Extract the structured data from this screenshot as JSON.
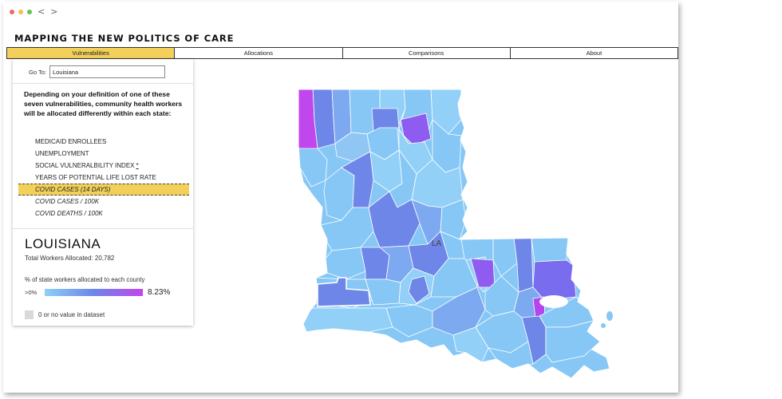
{
  "window": {
    "nav_back": "<",
    "nav_forward": ">"
  },
  "site_title": "MAPPING THE NEW POLITICS OF CARE",
  "tabs": [
    {
      "label": "Vulnerabilities",
      "active": true
    },
    {
      "label": "Allocations",
      "active": false
    },
    {
      "label": "Comparisons",
      "active": false
    },
    {
      "label": "About",
      "active": false
    }
  ],
  "goto": {
    "label": "Go To:",
    "value": "Louisiana"
  },
  "intro_text": "Depending on your definition of one of these seven vulnerabilities, community health workers will be allocated differently within each state:",
  "vulnerabilities": [
    {
      "label": "MEDICAID ENROLLEES",
      "selected": false,
      "italic": false
    },
    {
      "label": "UNEMPLOYMENT",
      "selected": false,
      "italic": false
    },
    {
      "label": "SOCIAL VULNERALBILITY INDEX",
      "selected": false,
      "italic": false,
      "info": "*"
    },
    {
      "label": "YEARS OF POTENTIAL LIFE LOST RATE",
      "selected": false,
      "italic": false
    },
    {
      "label": "COVID CASES (14 DAYS)",
      "selected": true,
      "italic": true
    },
    {
      "label": "COVID CASES / 100K",
      "selected": false,
      "italic": true
    },
    {
      "label": "COVID DEATHS / 100K",
      "selected": false,
      "italic": true
    }
  ],
  "state": {
    "name": "LOUISIANA",
    "workers_text": "Total Workers Allocated: 20,782",
    "abbr": "LA"
  },
  "legend": {
    "title": "% of state workers allocated to each county",
    "min_label": ">0%",
    "max_label": "8.23%",
    "no_data_label": "0 or no value in dataset",
    "colors": {
      "low": "#8ecff6",
      "mid": "#6d86e8",
      "high": "#c046ee",
      "no_data": "#d9d9d9"
    }
  },
  "icons": {
    "info": "asterisk-info-icon"
  }
}
